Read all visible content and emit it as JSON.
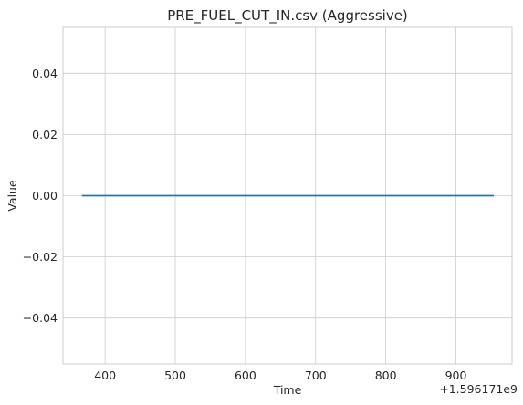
{
  "chart_data": {
    "type": "line",
    "title": "PRE_FUEL_CUT_IN.csv (Aggressive)",
    "xlabel": "Time",
    "ylabel": "Value",
    "x_offset_label": "+1.596171e9",
    "xlim": [
      340,
      980
    ],
    "ylim": [
      -0.055,
      0.055
    ],
    "x_ticks": [
      400,
      500,
      600,
      700,
      800,
      900
    ],
    "y_ticks": [
      -0.04,
      -0.02,
      0.0,
      0.02,
      0.04
    ],
    "x_tick_labels": [
      "400",
      "500",
      "600",
      "700",
      "800",
      "900"
    ],
    "y_tick_labels": [
      "−0.04",
      "−0.02",
      "0.00",
      "0.02",
      "0.04"
    ],
    "grid": true,
    "series": [
      {
        "color": "#1f77b4",
        "x": [
          367,
          954
        ],
        "y": [
          0.0,
          0.0
        ]
      }
    ]
  }
}
